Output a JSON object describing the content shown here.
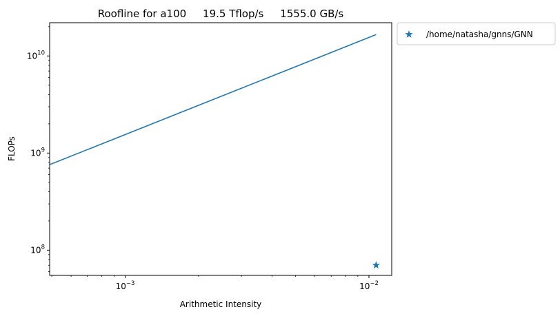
{
  "chart_data": {
    "type": "line",
    "title": "Roofline for a100     19.5 Tflop/s     1555.0 GB/s",
    "xlabel": "Arithmetic Intensity",
    "ylabel": "FLOPs",
    "xscale": "log",
    "yscale": "log",
    "xlim": [
      0.00049,
      0.0124
    ],
    "ylim": [
      55000000,
      22000000000
    ],
    "grid": false,
    "legend_placement": "outside-upper-right",
    "series": [
      {
        "type": "line",
        "color": "#1f77b4",
        "x": [
          0.00049,
          0.0107
        ],
        "y": [
          760000000,
          16600000000
        ]
      },
      {
        "type": "scatter",
        "marker": "star",
        "name": "/home/natasha/gnns/GNN",
        "color": "#1f77b4",
        "x": [
          0.0107
        ],
        "y": [
          70000000
        ]
      }
    ],
    "x_ticks": [
      {
        "value": 0.001,
        "base": "10",
        "exp": "−3"
      },
      {
        "value": 0.01,
        "base": "10",
        "exp": "−2"
      }
    ],
    "y_ticks": [
      {
        "value": 100000000,
        "base": "10",
        "exp": "8"
      },
      {
        "value": 1000000000,
        "base": "10",
        "exp": "9"
      },
      {
        "value": 10000000000,
        "base": "10",
        "exp": "10"
      }
    ]
  }
}
